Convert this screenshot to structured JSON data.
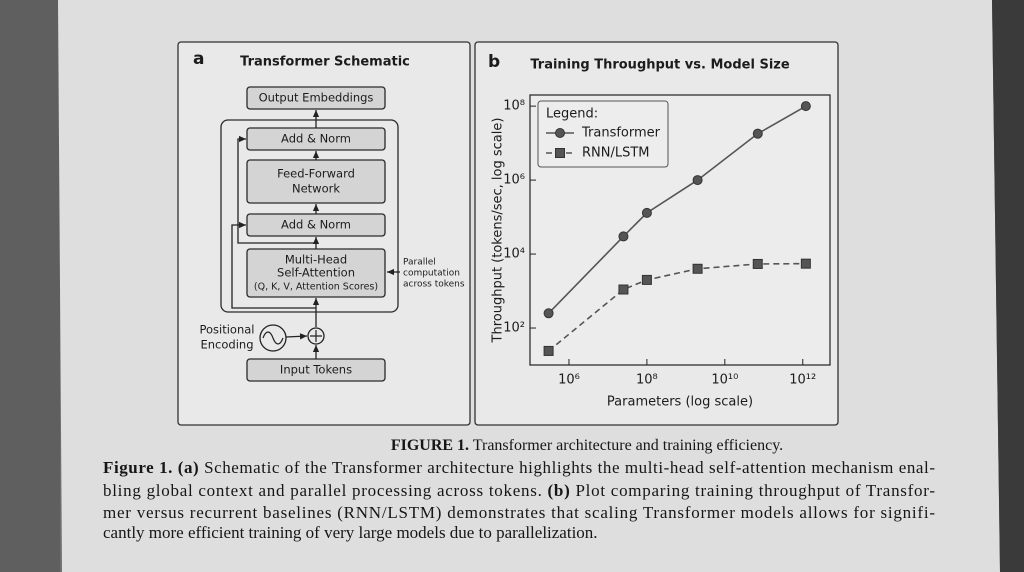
{
  "panel_a": {
    "label": "a",
    "title": "Transformer Schematic",
    "nodes": [
      {
        "lines": [
          "Output Embeddings"
        ]
      },
      {
        "lines": [
          "Add & Norm"
        ]
      },
      {
        "lines": [
          "Feed-Forward",
          "Network"
        ]
      },
      {
        "lines": [
          "Add & Norm"
        ]
      },
      {
        "lines": [
          "Multi-Head",
          "Self-Attention",
          "(Q, K, V, Attention Scores)"
        ]
      },
      {
        "lines": [
          "Input Tokens"
        ]
      }
    ],
    "positional_encoding": [
      "Positional",
      "Encoding"
    ],
    "annotation": [
      "Parallel",
      "computation",
      "across tokens"
    ]
  },
  "chart_data": {
    "type": "line",
    "panel_label": "b",
    "title": "Training Throughput vs. Model Size",
    "xlabel": "Parameters (log scale)",
    "ylabel": "Throughput (tokens/sec, log scale)",
    "xscale": "log",
    "yscale": "log",
    "xlim": [
      100000,
      5000000000000
    ],
    "ylim": [
      10,
      200000000
    ],
    "xticks": [
      {
        "value": 1000000,
        "label": "10⁶"
      },
      {
        "value": 100000000,
        "label": "10⁸"
      },
      {
        "value": 10000000000,
        "label": "10¹⁰"
      },
      {
        "value": 1000000000000,
        "label": "10¹²"
      }
    ],
    "yticks": [
      {
        "value": 100,
        "label": "10²"
      },
      {
        "value": 10000,
        "label": "10⁴"
      },
      {
        "value": 1000000,
        "label": "10⁶"
      },
      {
        "value": 100000000,
        "label": "10⁸"
      }
    ],
    "x": [
      300000,
      25000000,
      100000000,
      2000000000,
      70000000000,
      1200000000000
    ],
    "legend_title": "Legend:",
    "legend": "upper left",
    "series": [
      {
        "name": "Transformer",
        "color": "#555555",
        "marker": "circle",
        "linestyle": "solid",
        "values": [
          250,
          30000,
          130000,
          1000000,
          18000000,
          100000000
        ]
      },
      {
        "name": "RNN/LSTM",
        "color": "#555555",
        "marker": "square",
        "linestyle": "dashed",
        "values": [
          24,
          1100,
          2000,
          4000,
          5400,
          5500
        ]
      }
    ]
  },
  "caption": {
    "heading": [
      {
        "text": "FIGURE 1.",
        "bold": true
      },
      {
        "text": " Transformer architecture and training efficiency.",
        "bold": false
      }
    ],
    "lines": [
      [
        {
          "text": "Figure 1. (a)",
          "bold": true
        },
        {
          "text": " Schematic of the Transformer architecture highlights the multi-head self-attention mechanism enal-",
          "bold": false
        }
      ],
      [
        {
          "text": "bling global context and parallel processing across tokens. ",
          "bold": false
        },
        {
          "text": "(b)",
          "bold": true
        },
        {
          "text": " Plot comparing training throughput of Transfor-",
          "bold": false
        }
      ],
      [
        {
          "text": "mer versus recurrent baselines (RNN/LSTM) demonstrates that scaling Transformer models allows for signifi-",
          "bold": false
        }
      ],
      [
        {
          "text": "cantly more efficient training of very large models due to parallelization.",
          "bold": false
        }
      ]
    ]
  }
}
